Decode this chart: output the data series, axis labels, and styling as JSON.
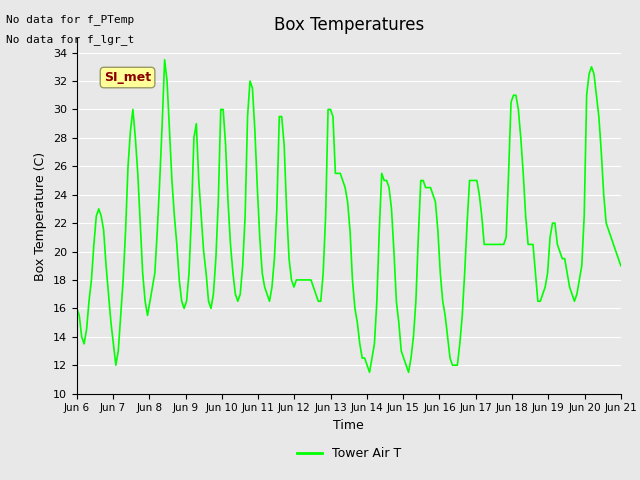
{
  "title": "Box Temperatures",
  "ylabel": "Box Temperature (C)",
  "xlabel": "Time",
  "ylim": [
    10,
    35
  ],
  "yticks": [
    10,
    12,
    14,
    16,
    18,
    20,
    22,
    24,
    26,
    28,
    30,
    32,
    34
  ],
  "background_color": "#e8e8e8",
  "plot_bg_color": "#e8e8e8",
  "line_color": "#00ff00",
  "legend_label": "Tower Air T",
  "no_data_texts": [
    "No data for f_PTemp",
    "No data for f_lgr_t"
  ],
  "si_met_label": "SI_met",
  "x_labels": [
    "Jun 6",
    "Jun 7",
    "Jun 8",
    "Jun 9",
    "Jun 10",
    "Jun 11",
    "Jun 12",
    "Jun 13",
    "Jun 14",
    "Jun 15",
    "Jun 16",
    "Jun 17",
    "Jun 18",
    "Jun 19",
    "Jun 20",
    "Jun 21"
  ],
  "tower_air_t": [
    16.0,
    15.5,
    14.0,
    13.5,
    14.5,
    16.5,
    18.0,
    20.5,
    22.5,
    23.0,
    22.5,
    21.5,
    19.0,
    17.0,
    15.0,
    13.5,
    12.0,
    13.0,
    15.5,
    18.0,
    21.5,
    26.0,
    28.5,
    30.0,
    28.0,
    25.5,
    22.0,
    18.5,
    16.5,
    15.5,
    16.5,
    17.5,
    18.5,
    21.5,
    25.0,
    29.0,
    33.5,
    32.0,
    28.5,
    25.0,
    22.5,
    20.5,
    18.0,
    16.5,
    16.0,
    16.5,
    18.5,
    22.5,
    28.0,
    29.0,
    25.0,
    22.5,
    20.0,
    18.5,
    16.5,
    16.0,
    17.0,
    19.5,
    23.5,
    30.0,
    30.0,
    27.5,
    23.5,
    20.5,
    18.5,
    17.0,
    16.5,
    17.0,
    19.0,
    22.5,
    29.5,
    32.0,
    31.5,
    28.5,
    24.5,
    21.0,
    18.5,
    17.5,
    17.0,
    16.5,
    17.5,
    19.5,
    23.0,
    29.5,
    29.5,
    27.5,
    23.0,
    19.5,
    18.0,
    17.5,
    18.0,
    18.0,
    18.0,
    18.0,
    18.0,
    18.0,
    18.0,
    17.5,
    17.0,
    16.5,
    16.5,
    18.5,
    22.5,
    30.0,
    30.0,
    29.5,
    25.5,
    25.5,
    25.5,
    25.0,
    24.5,
    23.5,
    21.5,
    18.0,
    16.0,
    15.0,
    13.5,
    12.5,
    12.5,
    12.0,
    11.5,
    12.5,
    13.5,
    16.5,
    21.5,
    25.5,
    25.0,
    25.0,
    24.5,
    23.0,
    20.0,
    16.5,
    15.0,
    13.0,
    12.5,
    12.0,
    11.5,
    12.5,
    14.0,
    16.5,
    21.0,
    25.0,
    25.0,
    24.5,
    24.5,
    24.5,
    24.0,
    23.5,
    21.5,
    18.5,
    16.5,
    15.5,
    14.0,
    12.5,
    12.0,
    12.0,
    12.0,
    13.5,
    15.5,
    18.5,
    22.0,
    25.0,
    25.0,
    25.0,
    25.0,
    24.0,
    22.5,
    20.5,
    20.5,
    20.5,
    20.5,
    20.5,
    20.5,
    20.5,
    20.5,
    20.5,
    21.0,
    25.5,
    30.5,
    31.0,
    31.0,
    30.0,
    28.0,
    25.5,
    22.5,
    20.5,
    20.5,
    20.5,
    18.5,
    16.5,
    16.5,
    17.0,
    17.5,
    18.5,
    21.0,
    22.0,
    22.0,
    20.5,
    20.0,
    19.5,
    19.5,
    18.5,
    17.5,
    17.0,
    16.5,
    17.0,
    18.0,
    19.0,
    22.5,
    31.0,
    32.5,
    33.0,
    32.5,
    31.0,
    29.5,
    27.0,
    24.0,
    22.0,
    21.5,
    21.0,
    20.5,
    20.0,
    19.5,
    19.0
  ]
}
